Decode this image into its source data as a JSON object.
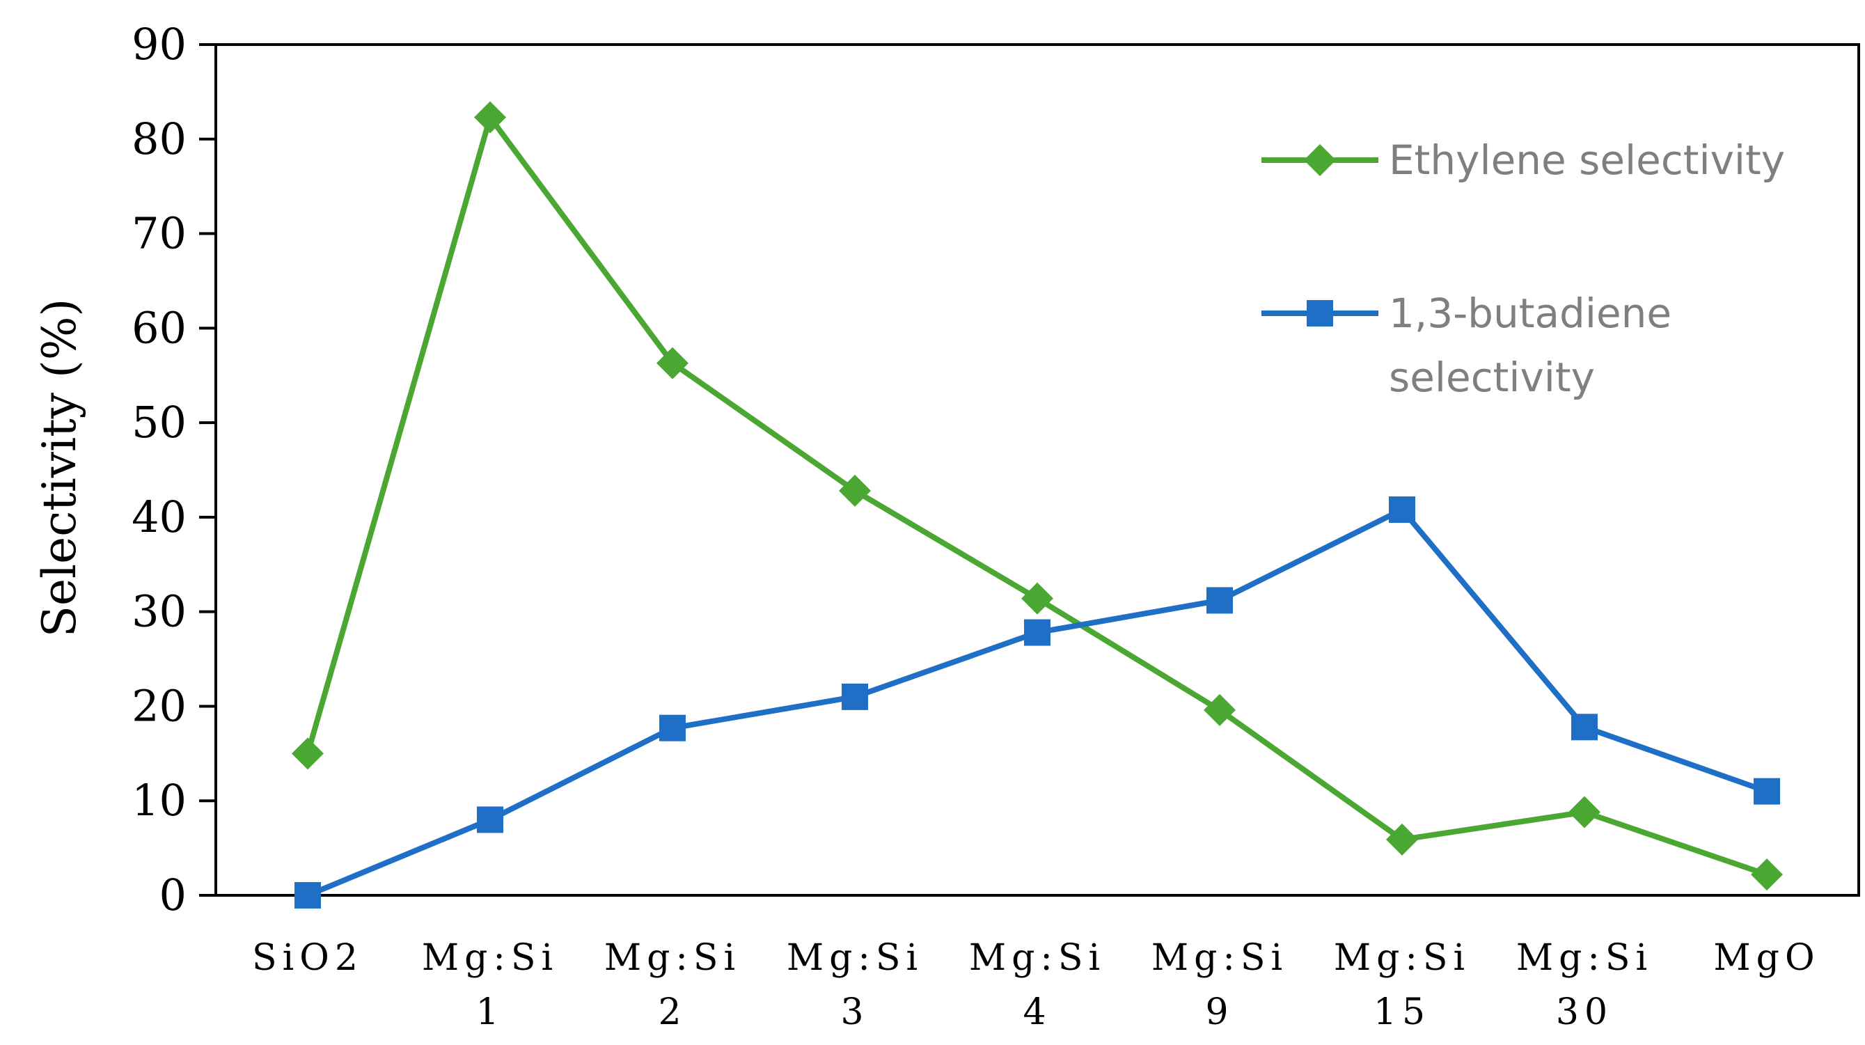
{
  "chart_data": {
    "type": "line",
    "title": "",
    "xlabel": "",
    "ylabel": "Selectivity (%)",
    "ylim": [
      0,
      90
    ],
    "yticks": [
      0,
      10,
      20,
      30,
      40,
      50,
      60,
      70,
      80,
      90
    ],
    "categories": [
      [
        "SiO2"
      ],
      [
        "Mg:Si",
        "1"
      ],
      [
        "Mg:Si",
        "2"
      ],
      [
        "Mg:Si",
        "3"
      ],
      [
        "Mg:Si",
        "4"
      ],
      [
        "Mg:Si",
        "9"
      ],
      [
        "Mg:Si",
        "15"
      ],
      [
        "Mg:Si",
        "30"
      ],
      [
        "MgO"
      ]
    ],
    "grid": false,
    "legend_position": "top-right",
    "series": [
      {
        "name": "Ethylene selectivity",
        "legend_lines": [
          "Ethylene selectivity"
        ],
        "color": "#4aa832",
        "marker": "diamond",
        "values": [
          15,
          82.3,
          56.3,
          42.8,
          31.4,
          19.6,
          5.9,
          8.8,
          2.2
        ]
      },
      {
        "name": "1,3-butadiene selectivity",
        "legend_lines": [
          "1,3-butadiene",
          "selectivity"
        ],
        "color": "#1f6fc6",
        "marker": "square",
        "values": [
          0,
          8,
          17.7,
          21,
          27.8,
          31.2,
          40.8,
          17.8,
          11
        ]
      }
    ]
  }
}
